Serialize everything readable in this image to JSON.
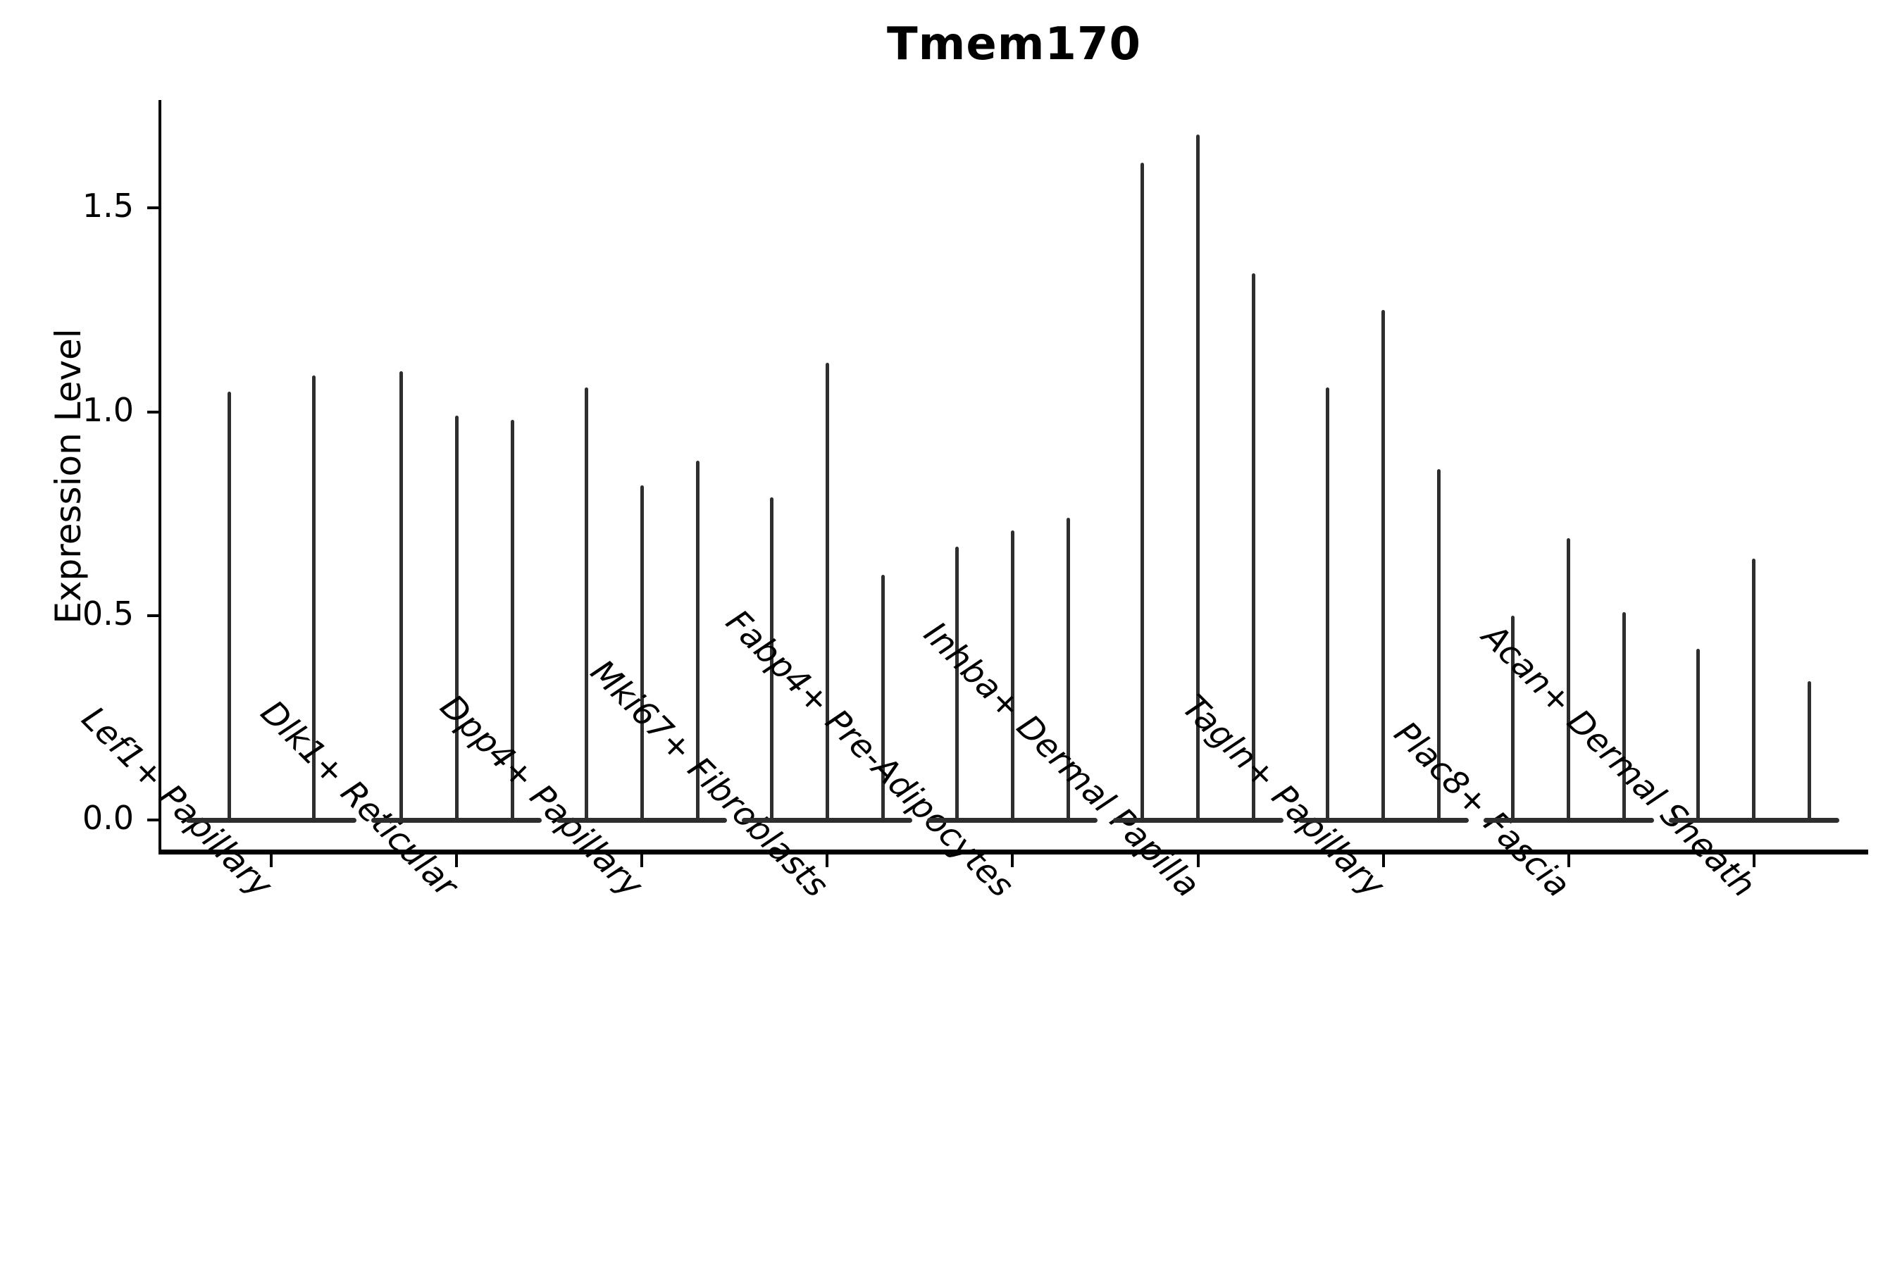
{
  "title": "Tmem170",
  "y_axis": {
    "label": "Expression Level",
    "ticks": [
      {
        "label": "0.0",
        "value": 0.0
      },
      {
        "label": "0.5",
        "value": 0.5
      },
      {
        "label": "1.0",
        "value": 1.0
      },
      {
        "label": "1.5",
        "value": 1.5
      }
    ]
  },
  "chart_data": {
    "type": "violin",
    "title": "Tmem170",
    "xlabel": "",
    "ylabel": "Expression Level",
    "ylim": [
      -0.09,
      1.77
    ],
    "yticks": [
      0.0,
      0.5,
      1.0,
      1.5
    ],
    "grid": false,
    "legend": "none",
    "violin_color": "#2e2e2e",
    "categories": [
      "Lef1+ Papillary",
      "Dlk1+ Reticular",
      "Dpp4+ Papillary",
      "Mki67+ Fibroblasts",
      "Fabp4+ Pre-Adipocytes",
      "Inhba+ Dermal Papilla",
      "Tagln+ Papillary",
      "Plac8+ Fascia",
      "Acan+ Dermal Sheath"
    ],
    "series": [
      {
        "category": "Lef1+ Papillary",
        "violin_peak_expression": [
          1.05,
          1.09
        ]
      },
      {
        "category": "Dlk1+ Reticular",
        "violin_peak_expression": [
          1.1,
          0.99,
          0.98
        ]
      },
      {
        "category": "Dpp4+ Papillary",
        "violin_peak_expression": [
          1.06,
          0.82,
          0.88
        ]
      },
      {
        "category": "Mki67+ Fibroblasts",
        "violin_peak_expression": [
          0.79,
          1.12,
          0.6
        ]
      },
      {
        "category": "Fabp4+ Pre-Adipocytes",
        "violin_peak_expression": [
          0.67,
          0.71,
          0.74
        ]
      },
      {
        "category": "Inhba+ Dermal Papilla",
        "violin_peak_expression": [
          1.61,
          1.68,
          1.34
        ]
      },
      {
        "category": "Tagln+ Papillary",
        "violin_peak_expression": [
          1.06,
          1.25,
          0.86
        ]
      },
      {
        "category": "Plac8+ Fascia",
        "violin_peak_expression": [
          0.5,
          0.69,
          0.51
        ]
      },
      {
        "category": "Acan+ Dermal Sheath",
        "violin_peak_expression": [
          0.42,
          0.64,
          0.34
        ]
      }
    ],
    "note_all_violins_are_thin_spikes_rising_from_flat_base_at_zero": true
  },
  "colors": {
    "background": "#ffffff",
    "axis": "#000000",
    "text": "#000000",
    "violin": "#2e2e2e"
  }
}
